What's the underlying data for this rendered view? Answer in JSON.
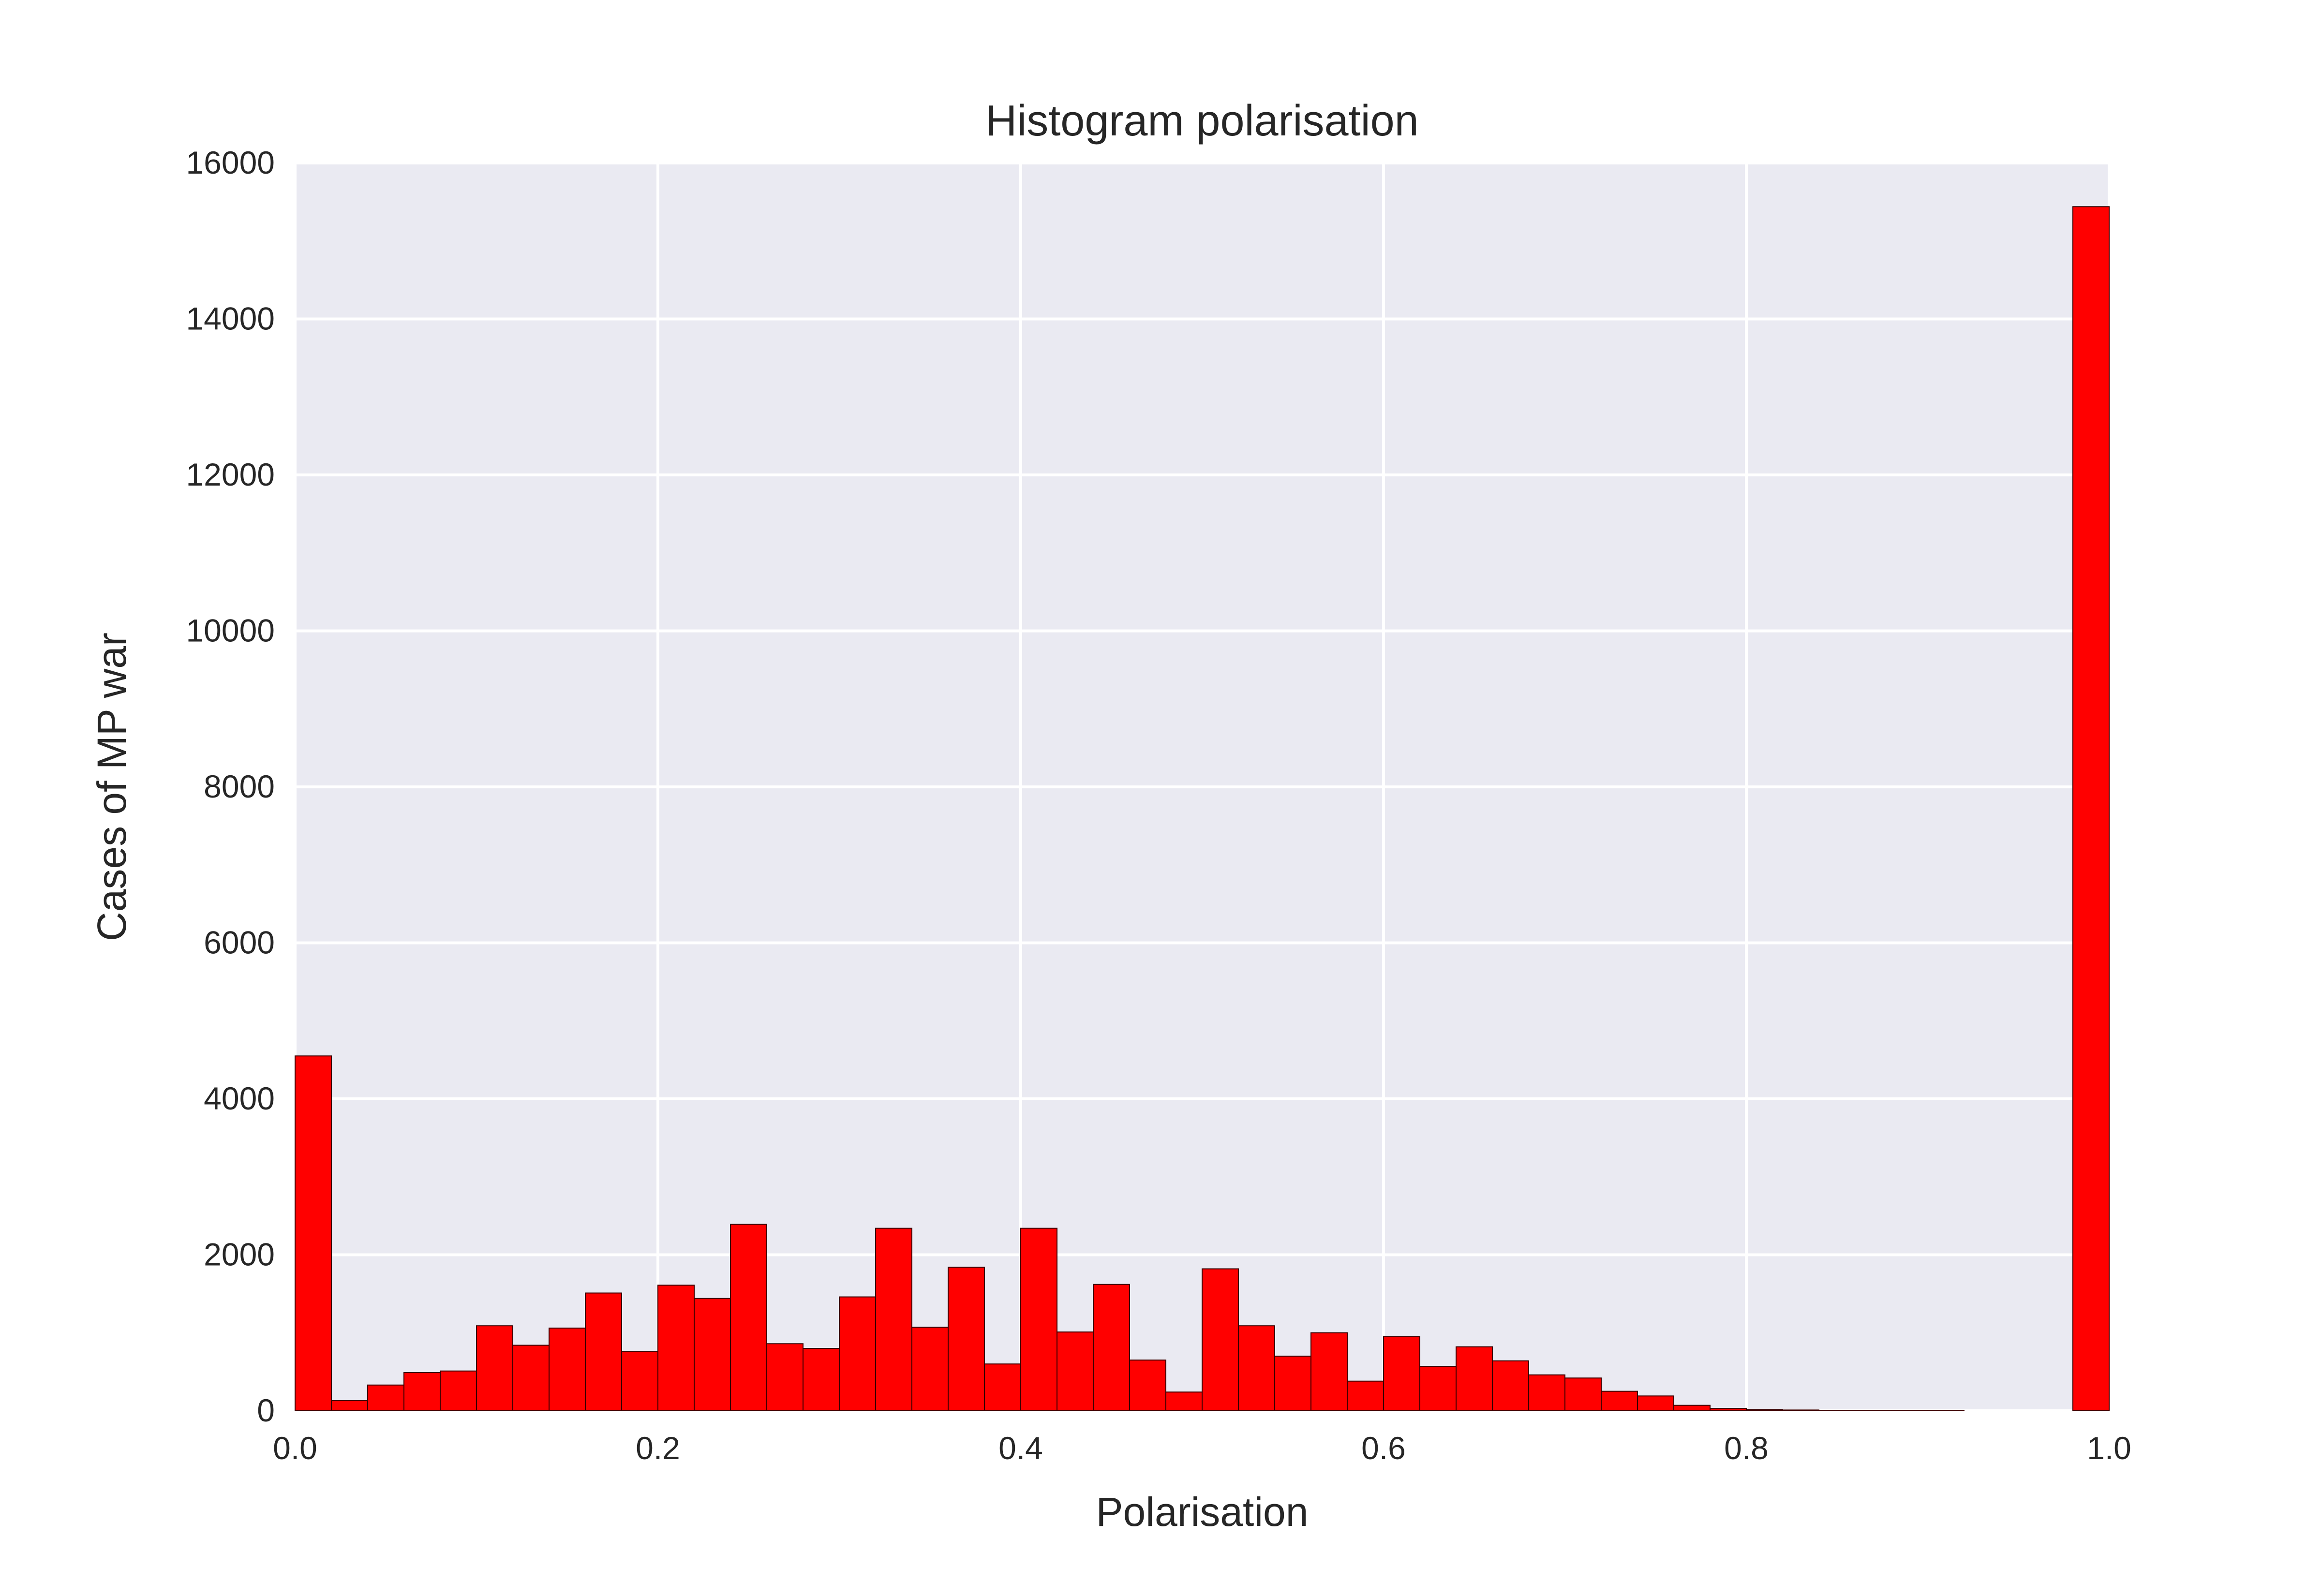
{
  "chart_data": {
    "type": "bar",
    "title": "Histogram polarisation",
    "xlabel": "Polarisation",
    "ylabel": "Cases of MP war",
    "xlim": [
      0.0,
      1.0
    ],
    "ylim": [
      0,
      16000
    ],
    "xticks": [
      "0.0",
      "0.2",
      "0.4",
      "0.6",
      "0.8",
      "1.0"
    ],
    "yticks": [
      "0",
      "2000",
      "4000",
      "6000",
      "8000",
      "10000",
      "12000",
      "14000",
      "16000"
    ],
    "grid": true,
    "colors": {
      "bar": "#ff0000",
      "bar_edge": "#3a0000",
      "plot_bg": "#eaeaf2",
      "grid": "#ffffff",
      "text": "#262626"
    },
    "bin_edges": [
      0.0,
      0.02,
      0.04,
      0.06,
      0.08,
      0.1,
      0.12,
      0.14,
      0.16,
      0.18,
      0.2,
      0.22,
      0.24,
      0.26,
      0.28,
      0.3,
      0.32,
      0.34,
      0.36,
      0.38,
      0.4,
      0.42,
      0.44,
      0.46,
      0.48,
      0.5,
      0.52,
      0.54,
      0.56,
      0.58,
      0.6,
      0.62,
      0.64,
      0.66,
      0.68,
      0.7,
      0.72,
      0.74,
      0.76,
      0.78,
      0.8,
      0.82,
      0.84,
      0.86,
      0.88,
      0.9,
      0.92,
      0.94,
      0.96,
      0.98,
      1.0
    ],
    "values": [
      4550,
      130,
      330,
      490,
      510,
      1090,
      840,
      1060,
      1510,
      760,
      1610,
      1440,
      2390,
      860,
      800,
      1460,
      2340,
      1070,
      1840,
      600,
      2340,
      1010,
      1620,
      650,
      240,
      1820,
      1090,
      700,
      1000,
      380,
      950,
      570,
      820,
      640,
      460,
      420,
      250,
      190,
      70,
      30,
      15,
      10,
      5,
      5,
      5,
      5,
      0,
      0,
      0,
      15440
    ]
  }
}
